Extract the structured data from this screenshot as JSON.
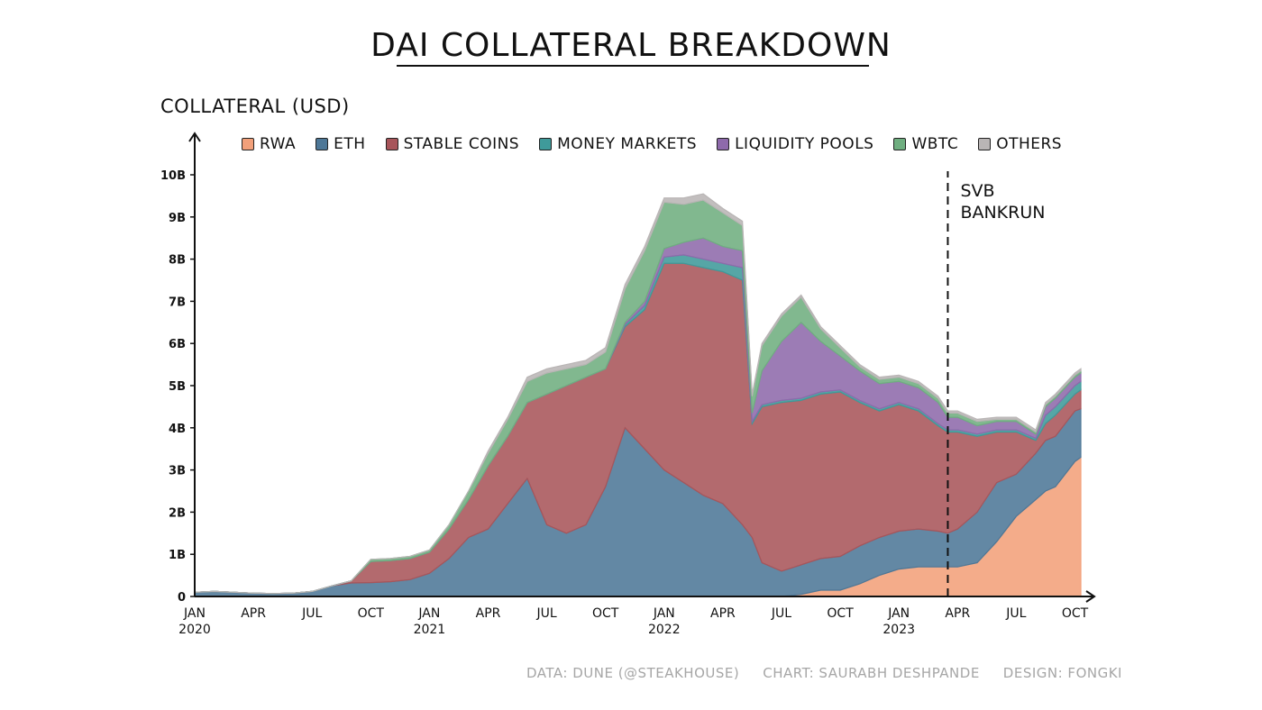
{
  "chart_data": {
    "type": "area",
    "stacked": true,
    "title": "DAI COLLATERAL BREAKDOWN",
    "ylabel": "COLLATERAL (USD)",
    "xlabel": "",
    "ylim": [
      0,
      10
    ],
    "y_ticks": [
      "0",
      "1B",
      "2B",
      "3B",
      "4B",
      "5B",
      "6B",
      "7B",
      "8B",
      "9B",
      "10B"
    ],
    "x_ticks": [
      {
        "label": "JAN",
        "year": "2020",
        "t": 0
      },
      {
        "label": "APR",
        "year": "",
        "t": 3
      },
      {
        "label": "JUL",
        "year": "",
        "t": 6
      },
      {
        "label": "OCT",
        "year": "",
        "t": 9
      },
      {
        "label": "JAN",
        "year": "2021",
        "t": 12
      },
      {
        "label": "APR",
        "year": "",
        "t": 15
      },
      {
        "label": "JUL",
        "year": "",
        "t": 18
      },
      {
        "label": "OCT",
        "year": "",
        "t": 21
      },
      {
        "label": "JAN",
        "year": "2022",
        "t": 24
      },
      {
        "label": "APR",
        "year": "",
        "t": 27
      },
      {
        "label": "JUL",
        "year": "",
        "t": 30
      },
      {
        "label": "OCT",
        "year": "",
        "t": 33
      },
      {
        "label": "JAN",
        "year": "2023",
        "t": 36
      },
      {
        "label": "APR",
        "year": "",
        "t": 39
      },
      {
        "label": "JUL",
        "year": "",
        "t": 42
      },
      {
        "label": "OCT",
        "year": "",
        "t": 45
      }
    ],
    "x": [
      0,
      1,
      2,
      3,
      4,
      5,
      6,
      7,
      8,
      9,
      10,
      11,
      12,
      13,
      14,
      15,
      16,
      17,
      18,
      19,
      20,
      21,
      22,
      23,
      24,
      25,
      26,
      27,
      28,
      28.5,
      29,
      30,
      31,
      32,
      33,
      34,
      35,
      36,
      37,
      38,
      38.5,
      39,
      40,
      41,
      42,
      43,
      43.5,
      44,
      45,
      45.3
    ],
    "series": [
      {
        "name": "RWA",
        "color": "#f2a07a",
        "values": [
          0,
          0,
          0,
          0,
          0,
          0,
          0,
          0,
          0,
          0,
          0,
          0,
          0,
          0,
          0,
          0,
          0,
          0,
          0,
          0,
          0,
          0,
          0,
          0,
          0,
          0,
          0,
          0,
          0,
          0,
          0,
          0,
          0.05,
          0.15,
          0.15,
          0.3,
          0.5,
          0.65,
          0.7,
          0.7,
          0.7,
          0.7,
          0.8,
          1.3,
          1.9,
          2.3,
          2.5,
          2.6,
          3.2,
          3.3
        ]
      },
      {
        "name": "ETH",
        "color": "#4d7797",
        "values": [
          0.1,
          0.12,
          0.1,
          0.08,
          0.07,
          0.08,
          0.12,
          0.25,
          0.32,
          0.33,
          0.35,
          0.4,
          0.55,
          0.9,
          1.4,
          1.6,
          2.2,
          2.8,
          1.7,
          1.5,
          1.7,
          2.6,
          4.0,
          3.5,
          3.0,
          2.7,
          2.4,
          2.2,
          1.7,
          1.4,
          0.8,
          0.6,
          0.7,
          0.75,
          0.8,
          0.9,
          0.9,
          0.9,
          0.9,
          0.85,
          0.8,
          0.9,
          1.2,
          1.4,
          1.0,
          1.1,
          1.2,
          1.2,
          1.2,
          1.15
        ]
      },
      {
        "name": "STABLE COINS",
        "color": "#a8555a",
        "values": [
          0,
          0,
          0,
          0,
          0,
          0,
          0,
          0,
          0.05,
          0.5,
          0.5,
          0.5,
          0.5,
          0.7,
          0.9,
          1.5,
          1.6,
          1.8,
          3.1,
          3.5,
          3.5,
          2.8,
          2.4,
          3.3,
          4.9,
          5.2,
          5.4,
          5.5,
          5.8,
          2.7,
          3.7,
          4.0,
          3.9,
          3.9,
          3.9,
          3.4,
          3.0,
          3.0,
          2.8,
          2.5,
          2.4,
          2.3,
          1.8,
          1.2,
          1.0,
          0.3,
          0.4,
          0.5,
          0.4,
          0.45
        ]
      },
      {
        "name": "MONEY MARKETS",
        "color": "#3f9a9a",
        "values": [
          0,
          0,
          0,
          0,
          0,
          0,
          0,
          0,
          0,
          0,
          0,
          0,
          0,
          0,
          0,
          0,
          0,
          0,
          0,
          0,
          0,
          0,
          0.05,
          0.1,
          0.15,
          0.2,
          0.2,
          0.2,
          0.3,
          0.05,
          0.05,
          0.05,
          0.05,
          0.05,
          0.05,
          0.05,
          0.05,
          0.05,
          0.05,
          0.05,
          0.05,
          0.05,
          0.05,
          0.05,
          0.05,
          0.05,
          0.2,
          0.2,
          0.2,
          0.2
        ]
      },
      {
        "name": "LIQUIDITY POOLS",
        "color": "#8e6aab",
        "values": [
          0,
          0,
          0,
          0,
          0,
          0,
          0,
          0,
          0,
          0,
          0,
          0,
          0,
          0,
          0,
          0,
          0,
          0,
          0,
          0,
          0,
          0,
          0.05,
          0.1,
          0.2,
          0.3,
          0.5,
          0.4,
          0.4,
          0.2,
          0.8,
          1.4,
          1.8,
          1.2,
          0.8,
          0.7,
          0.6,
          0.5,
          0.5,
          0.5,
          0.3,
          0.3,
          0.2,
          0.2,
          0.2,
          0.1,
          0.2,
          0.2,
          0.2,
          0.2
        ]
      },
      {
        "name": "WBTC",
        "color": "#6fae80",
        "values": [
          0,
          0,
          0,
          0,
          0,
          0,
          0,
          0,
          0,
          0.05,
          0.05,
          0.05,
          0.05,
          0.1,
          0.2,
          0.3,
          0.4,
          0.5,
          0.5,
          0.4,
          0.3,
          0.4,
          0.8,
          1.2,
          1.1,
          0.9,
          0.9,
          0.8,
          0.6,
          0.4,
          0.6,
          0.6,
          0.6,
          0.3,
          0.2,
          0.1,
          0.1,
          0.1,
          0.1,
          0.1,
          0.1,
          0.1,
          0.1,
          0.05,
          0.05,
          0.05,
          0.05,
          0.05,
          0.05,
          0.05
        ]
      },
      {
        "name": "OTHERS",
        "color": "#b9b5b5",
        "values": [
          0,
          0,
          0,
          0,
          0,
          0,
          0,
          0,
          0,
          0,
          0,
          0,
          0,
          0,
          0,
          0.05,
          0.05,
          0.1,
          0.1,
          0.1,
          0.1,
          0.1,
          0.1,
          0.1,
          0.1,
          0.15,
          0.15,
          0.1,
          0.1,
          0.05,
          0.05,
          0.05,
          0.05,
          0.05,
          0.05,
          0.05,
          0.05,
          0.05,
          0.05,
          0.05,
          0.05,
          0.05,
          0.05,
          0.05,
          0.05,
          0.05,
          0.05,
          0.05,
          0.05,
          0.05
        ]
      }
    ],
    "annotations": [
      {
        "text_lines": [
          "SVB",
          "BANKRUN"
        ],
        "x": 38.5,
        "style": "dashed-vertical-line"
      }
    ],
    "grid": false,
    "legend_position": "top"
  },
  "credits": {
    "data": "DATA: DUNE (@STEAKHOUSE)",
    "chart": "CHART: SAURABH DESHPANDE",
    "design": "DESIGN: FONGKI"
  }
}
